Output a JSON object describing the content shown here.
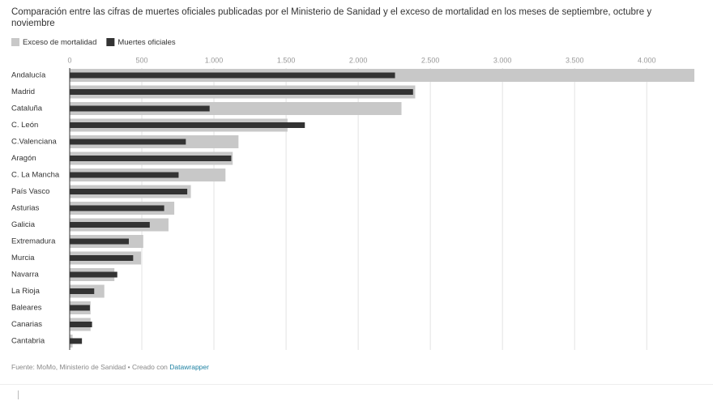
{
  "chart_data": {
    "type": "bar",
    "orientation": "horizontal",
    "title": "Comparación entre las cifras de muertes oficiales publicadas por el Ministerio de Sanidad y el exceso de mortalidad en los meses de septiembre, octubre y noviembre",
    "categories": [
      "Andalucía",
      "Madrid",
      "Cataluña",
      "C. León",
      "C.Valenciana",
      "Aragón",
      "C. La Mancha",
      "País Vasco",
      "Asturias",
      "Galicia",
      "Extremadura",
      "Murcia",
      "Navarra",
      "La Rioja",
      "Baleares",
      "Canarias",
      "Cantabria"
    ],
    "series": [
      {
        "name": "Exceso de mortalidad",
        "color": "#c8c8c8",
        "values": [
          4330,
          2395,
          2300,
          1510,
          1170,
          1130,
          1080,
          840,
          725,
          685,
          510,
          495,
          310,
          240,
          145,
          145,
          20
        ]
      },
      {
        "name": "Muertes oficiales",
        "color": "#333333",
        "values": [
          2255,
          2380,
          970,
          1630,
          805,
          1120,
          755,
          815,
          655,
          555,
          410,
          440,
          330,
          170,
          140,
          155,
          85
        ]
      }
    ],
    "xlim": [
      0,
      4330
    ],
    "xticks": [
      0,
      500,
      {
        "value": 1000,
        "label": "1.000"
      },
      {
        "value": 1500,
        "label": "1.500"
      },
      {
        "value": 2000,
        "label": "2.000"
      },
      {
        "value": 2500,
        "label": "2.500"
      },
      {
        "value": 3000,
        "label": "3.000"
      },
      {
        "value": 3500,
        "label": "3.500"
      },
      {
        "value": 4000,
        "label": "4.000"
      }
    ],
    "grid": true,
    "source": "Fuente: MoMo, Ministerio de Sanidad • Creado con",
    "credit_link": "Datawrapper"
  }
}
